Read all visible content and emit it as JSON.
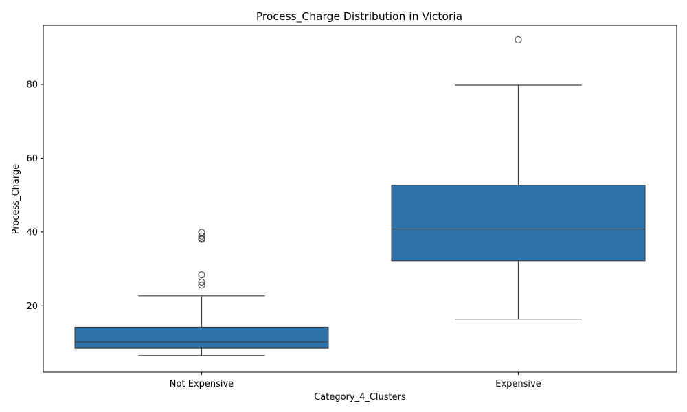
{
  "chart_data": {
    "type": "box",
    "title": "Process_Charge Distribution in Victoria",
    "xlabel": "Category_4_Clusters",
    "ylabel": "Process_Charge",
    "ylim": [
      2,
      96
    ],
    "yticks": [
      20,
      40,
      60,
      80
    ],
    "grid": false,
    "box_color": "#2e72a9",
    "line_color": "#3d3d3d",
    "categories": [
      "Not Expensive",
      "Expensive"
    ],
    "boxes": [
      {
        "category": "Not Expensive",
        "whisker_low": 6.5,
        "q1": 8.5,
        "median": 10.2,
        "q3": 14.2,
        "whisker_high": 22.7,
        "outliers": [
          25.6,
          26.4,
          28.4,
          38.0,
          38.3,
          38.9,
          39.9
        ]
      },
      {
        "category": "Expensive",
        "whisker_low": 16.4,
        "q1": 32.2,
        "median": 40.8,
        "q3": 52.7,
        "whisker_high": 79.8,
        "outliers": [
          92.1
        ]
      }
    ]
  }
}
